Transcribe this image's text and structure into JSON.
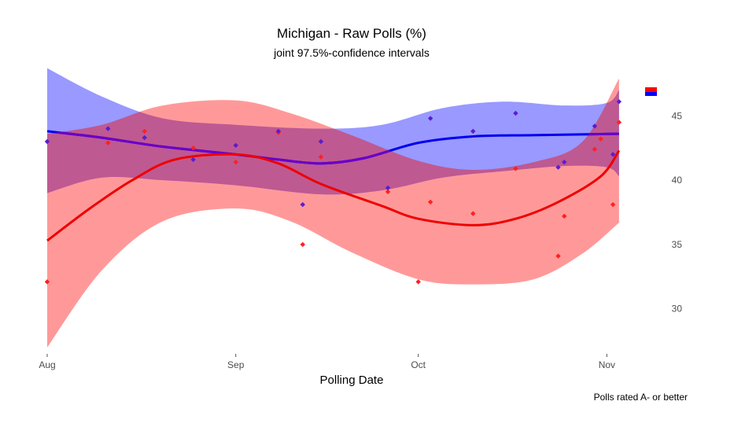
{
  "chart_data": {
    "type": "scatter",
    "title": "Michigan - Raw Polls (%)",
    "subtitle": "joint 97.5%-confidence intervals",
    "xlabel": "Polling Date",
    "ylabel": "",
    "caption": "Polls rated A- or better",
    "x_axis": {
      "range": [
        "2016-08-01",
        "2016-11-10"
      ],
      "ticks": [
        {
          "date": "2016-08-01",
          "label": "Aug"
        },
        {
          "date": "2016-09-01",
          "label": "Sep"
        },
        {
          "date": "2016-10-01",
          "label": "Oct"
        },
        {
          "date": "2016-11-01",
          "label": "Nov"
        }
      ]
    },
    "y_axis": {
      "range": [
        26.5,
        48.5
      ],
      "ticks": [
        30,
        35,
        40,
        45
      ],
      "position": "right"
    },
    "grid": false,
    "legend": {
      "placement": "top-right",
      "swatch_colors": [
        "#ff0000",
        "#0000ff"
      ]
    },
    "colors": {
      "blue_band": "#9999ff",
      "red_band": "#ff9999",
      "overlap_band": "#bf5991",
      "blue_line": "#0000ee",
      "purple_line": "#6a00c8",
      "red_line": "#ee0000",
      "blue_point": "#5a1dd0",
      "red_point": "#ff2020"
    },
    "series": [
      {
        "color": "blue",
        "points": [
          {
            "date": "2016-08-01",
            "value": 43.0
          },
          {
            "date": "2016-08-11",
            "value": 44.0
          },
          {
            "date": "2016-08-17",
            "value": 43.3
          },
          {
            "date": "2016-08-25",
            "value": 41.6
          },
          {
            "date": "2016-09-01",
            "value": 42.7
          },
          {
            "date": "2016-09-08",
            "value": 43.8
          },
          {
            "date": "2016-09-12",
            "value": 38.1
          },
          {
            "date": "2016-09-15",
            "value": 43.0
          },
          {
            "date": "2016-09-26",
            "value": 39.4
          },
          {
            "date": "2016-10-03",
            "value": 44.8
          },
          {
            "date": "2016-10-10",
            "value": 43.8
          },
          {
            "date": "2016-10-17",
            "value": 45.2
          },
          {
            "date": "2016-10-24",
            "value": 41.0
          },
          {
            "date": "2016-10-25",
            "value": 41.4
          },
          {
            "date": "2016-10-30",
            "value": 44.2
          },
          {
            "date": "2016-11-02",
            "value": 42.0
          },
          {
            "date": "2016-11-03",
            "value": 46.1
          }
        ],
        "trend": [
          {
            "date": "2016-08-01",
            "value": 43.8
          },
          {
            "date": "2016-08-10",
            "value": 43.3
          },
          {
            "date": "2016-08-20",
            "value": 42.6
          },
          {
            "date": "2016-09-01",
            "value": 42.0
          },
          {
            "date": "2016-09-08",
            "value": 41.6
          },
          {
            "date": "2016-09-15",
            "value": 41.3
          },
          {
            "date": "2016-09-22",
            "value": 41.7
          },
          {
            "date": "2016-10-01",
            "value": 42.9
          },
          {
            "date": "2016-10-10",
            "value": 43.4
          },
          {
            "date": "2016-10-20",
            "value": 43.5
          },
          {
            "date": "2016-11-03",
            "value": 43.6
          }
        ],
        "band_upper": [
          {
            "date": "2016-08-01",
            "value": 48.7
          },
          {
            "date": "2016-08-10",
            "value": 46.5
          },
          {
            "date": "2016-08-20",
            "value": 44.8
          },
          {
            "date": "2016-09-01",
            "value": 44.3
          },
          {
            "date": "2016-09-15",
            "value": 44.0
          },
          {
            "date": "2016-09-25",
            "value": 44.3
          },
          {
            "date": "2016-10-05",
            "value": 45.6
          },
          {
            "date": "2016-10-15",
            "value": 46.1
          },
          {
            "date": "2016-10-25",
            "value": 45.8
          },
          {
            "date": "2016-11-01",
            "value": 46.0
          },
          {
            "date": "2016-11-03",
            "value": 47.0
          }
        ],
        "band_lower": [
          {
            "date": "2016-08-01",
            "value": 39.0
          },
          {
            "date": "2016-08-10",
            "value": 40.2
          },
          {
            "date": "2016-08-20",
            "value": 40.0
          },
          {
            "date": "2016-09-01",
            "value": 39.6
          },
          {
            "date": "2016-09-15",
            "value": 38.9
          },
          {
            "date": "2016-09-25",
            "value": 39.2
          },
          {
            "date": "2016-10-05",
            "value": 40.2
          },
          {
            "date": "2016-10-15",
            "value": 40.7
          },
          {
            "date": "2016-10-25",
            "value": 41.1
          },
          {
            "date": "2016-11-01",
            "value": 41.0
          },
          {
            "date": "2016-11-03",
            "value": 40.3
          }
        ]
      },
      {
        "color": "red",
        "points": [
          {
            "date": "2016-08-01",
            "value": 32.1
          },
          {
            "date": "2016-08-11",
            "value": 42.9
          },
          {
            "date": "2016-08-17",
            "value": 43.8
          },
          {
            "date": "2016-08-25",
            "value": 42.5
          },
          {
            "date": "2016-09-01",
            "value": 41.4
          },
          {
            "date": "2016-09-08",
            "value": 43.7
          },
          {
            "date": "2016-09-12",
            "value": 35.0
          },
          {
            "date": "2016-09-15",
            "value": 41.8
          },
          {
            "date": "2016-09-26",
            "value": 39.1
          },
          {
            "date": "2016-10-01",
            "value": 32.1
          },
          {
            "date": "2016-10-03",
            "value": 38.3
          },
          {
            "date": "2016-10-10",
            "value": 37.4
          },
          {
            "date": "2016-10-17",
            "value": 40.9
          },
          {
            "date": "2016-10-24",
            "value": 34.1
          },
          {
            "date": "2016-10-25",
            "value": 37.2
          },
          {
            "date": "2016-10-30",
            "value": 42.4
          },
          {
            "date": "2016-10-31",
            "value": 43.2
          },
          {
            "date": "2016-11-02",
            "value": 38.1
          },
          {
            "date": "2016-11-03",
            "value": 44.5
          }
        ],
        "trend": [
          {
            "date": "2016-08-01",
            "value": 35.3
          },
          {
            "date": "2016-08-08",
            "value": 37.8
          },
          {
            "date": "2016-08-15",
            "value": 40.0
          },
          {
            "date": "2016-08-22",
            "value": 41.6
          },
          {
            "date": "2016-09-01",
            "value": 42.0
          },
          {
            "date": "2016-09-08",
            "value": 41.3
          },
          {
            "date": "2016-09-15",
            "value": 39.7
          },
          {
            "date": "2016-09-25",
            "value": 38.0
          },
          {
            "date": "2016-10-01",
            "value": 37.0
          },
          {
            "date": "2016-10-10",
            "value": 36.5
          },
          {
            "date": "2016-10-17",
            "value": 37.0
          },
          {
            "date": "2016-10-24",
            "value": 38.3
          },
          {
            "date": "2016-10-31",
            "value": 40.3
          },
          {
            "date": "2016-11-03",
            "value": 42.3
          }
        ],
        "band_upper": [
          {
            "date": "2016-08-01",
            "value": 43.6
          },
          {
            "date": "2016-08-10",
            "value": 44.3
          },
          {
            "date": "2016-08-20",
            "value": 45.8
          },
          {
            "date": "2016-09-01",
            "value": 46.2
          },
          {
            "date": "2016-09-10",
            "value": 45.2
          },
          {
            "date": "2016-09-20",
            "value": 43.5
          },
          {
            "date": "2016-10-01",
            "value": 41.5
          },
          {
            "date": "2016-10-10",
            "value": 40.8
          },
          {
            "date": "2016-10-20",
            "value": 41.4
          },
          {
            "date": "2016-10-28",
            "value": 43.0
          },
          {
            "date": "2016-11-03",
            "value": 47.9
          }
        ],
        "band_lower": [
          {
            "date": "2016-08-01",
            "value": 27.0
          },
          {
            "date": "2016-08-10",
            "value": 33.0
          },
          {
            "date": "2016-08-20",
            "value": 36.8
          },
          {
            "date": "2016-09-01",
            "value": 37.8
          },
          {
            "date": "2016-09-10",
            "value": 36.8
          },
          {
            "date": "2016-09-20",
            "value": 34.4
          },
          {
            "date": "2016-10-01",
            "value": 32.3
          },
          {
            "date": "2016-10-10",
            "value": 31.9
          },
          {
            "date": "2016-10-20",
            "value": 32.3
          },
          {
            "date": "2016-10-28",
            "value": 34.3
          },
          {
            "date": "2016-11-03",
            "value": 36.7
          }
        ]
      }
    ]
  }
}
